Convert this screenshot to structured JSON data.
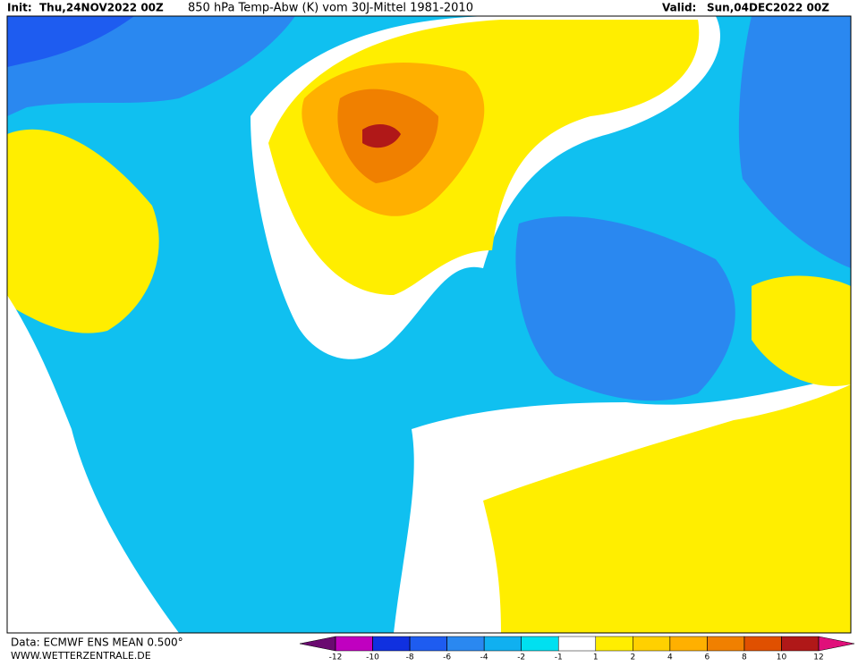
{
  "header": {
    "init_label": "Init:",
    "init": "Thu,24NOV2022 00Z",
    "title": "850 hPa Temp-Abw (K) vom 30J-Mittel 1981-2010",
    "valid_label": "Valid:",
    "valid": "Sun,04DEC2022 00Z"
  },
  "footer": {
    "source": "Data: ECMWF ENS MEAN 0.500°",
    "site": "WWW.WETTERZENTRALE.DE"
  },
  "legend": {
    "ticks": [
      -12,
      -10,
      -8,
      -6,
      -4,
      -2,
      -1,
      1,
      2,
      4,
      6,
      8,
      10,
      12
    ],
    "colors": [
      "#6a0a70",
      "#c000c0",
      "#1030e0",
      "#1e5cf0",
      "#2a88f0",
      "#10b0f0",
      "#00e0f0",
      "#ffffff",
      "#ffee00",
      "#ffd000",
      "#ffb000",
      "#f08000",
      "#e05000",
      "#b01818",
      "#e0107a"
    ]
  }
}
